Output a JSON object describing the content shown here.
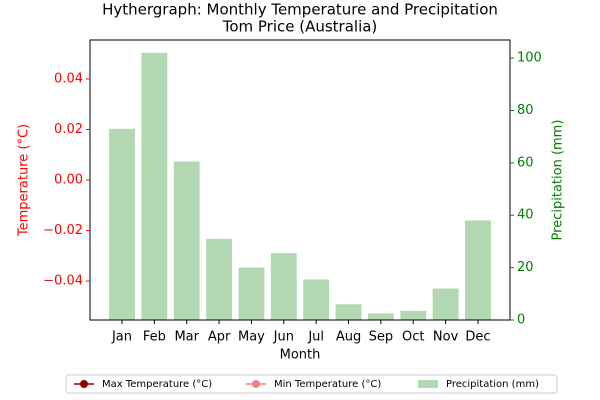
{
  "chart_data": {
    "type": "bar",
    "title": "Hythergraph: Monthly Temperature and Precipitation",
    "subtitle": "Tom Price (Australia)",
    "xlabel": "Month",
    "ylabel": "Temperature (°C)",
    "y2label": "Precipitation (mm)",
    "ylabel_color": "red",
    "y2label_color": "green",
    "categories": [
      "Jan",
      "Feb",
      "Mar",
      "Apr",
      "May",
      "Jun",
      "Jul",
      "Aug",
      "Sep",
      "Oct",
      "Nov",
      "Dec"
    ],
    "series": [
      {
        "name": "Max Temperature (°C)",
        "type": "line",
        "color": "darkred",
        "axis": "y",
        "values": [
          null,
          null,
          null,
          null,
          null,
          null,
          null,
          null,
          null,
          null,
          null,
          null
        ]
      },
      {
        "name": "Min Temperature (°C)",
        "type": "line",
        "color": "lightcoral",
        "axis": "y",
        "values": [
          null,
          null,
          null,
          null,
          null,
          null,
          null,
          null,
          null,
          null,
          null,
          null
        ]
      },
      {
        "name": "Precipitation (mm)",
        "type": "bar",
        "color": "#b2d8b2",
        "axis": "y2",
        "values": [
          73,
          102,
          60.5,
          31,
          20,
          25.5,
          15.5,
          6,
          2.5,
          3.5,
          12,
          38
        ]
      }
    ],
    "ylim": [
      -0.0554,
      0.0554
    ],
    "yticks": [
      {
        "value": -0.04,
        "label": "−0.04"
      },
      {
        "value": -0.02,
        "label": "−0.02"
      },
      {
        "value": 0,
        "label": "0.00"
      },
      0.02,
      0.04
    ],
    "y2lim": [
      0,
      106.9
    ],
    "y2ticks": [
      0,
      20,
      40,
      60,
      80,
      100
    ],
    "legend": "bottom"
  }
}
